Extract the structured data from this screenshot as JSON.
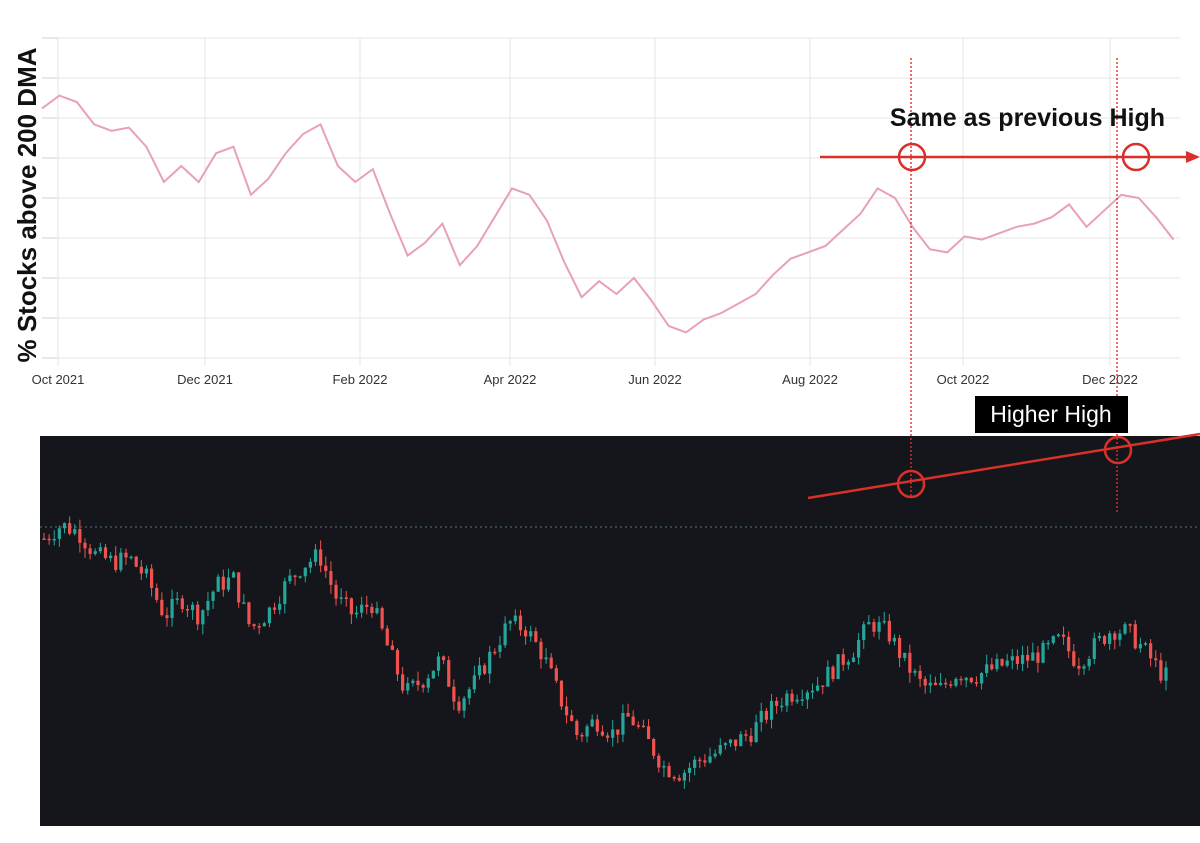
{
  "chart_data": [
    {
      "type": "line",
      "title": "",
      "ylabel": "% Stocks above 200 DMA",
      "xlabel": "",
      "x_tick_labels": [
        "Oct 2021",
        "Dec 2021",
        "Feb 2022",
        "Apr 2022",
        "Jun 2022",
        "Aug 2022",
        "Oct 2022",
        "Dec 2022"
      ],
      "x_range": [
        "2021-10-01",
        "2022-12-31"
      ],
      "grid": true,
      "line_color": "#e8a0b8",
      "series": [
        {
          "x": [
            "2021-10-01",
            "2021-10-08",
            "2021-10-15",
            "2021-10-22",
            "2021-10-29",
            "2021-11-05",
            "2021-11-12",
            "2021-11-19",
            "2021-11-26",
            "2021-12-03",
            "2021-12-10",
            "2021-12-17",
            "2021-12-24",
            "2021-12-31",
            "2022-01-07",
            "2022-01-14",
            "2022-01-21",
            "2022-01-28",
            "2022-02-04",
            "2022-02-11",
            "2022-02-18",
            "2022-02-25",
            "2022-03-04",
            "2022-03-11",
            "2022-03-18",
            "2022-03-25",
            "2022-04-01",
            "2022-04-08",
            "2022-04-15",
            "2022-04-22",
            "2022-04-29",
            "2022-05-06",
            "2022-05-13",
            "2022-05-20",
            "2022-05-27",
            "2022-06-03",
            "2022-06-10",
            "2022-06-17",
            "2022-06-24",
            "2022-07-01",
            "2022-07-08",
            "2022-07-15",
            "2022-07-22",
            "2022-07-29",
            "2022-08-05",
            "2022-08-12",
            "2022-08-19",
            "2022-08-26",
            "2022-09-02",
            "2022-09-09",
            "2022-09-16",
            "2022-09-23",
            "2022-09-30",
            "2022-10-07",
            "2022-10-14",
            "2022-10-21",
            "2022-10-28",
            "2022-11-04",
            "2022-11-11",
            "2022-11-18",
            "2022-11-25",
            "2022-12-02",
            "2022-12-09",
            "2022-12-16",
            "2022-12-23",
            "2022-12-30"
          ],
          "y": [
            0.78,
            0.82,
            0.8,
            0.73,
            0.71,
            0.72,
            0.66,
            0.55,
            0.6,
            0.55,
            0.64,
            0.66,
            0.51,
            0.56,
            0.64,
            0.7,
            0.73,
            0.6,
            0.55,
            0.59,
            0.45,
            0.32,
            0.36,
            0.42,
            0.29,
            0.35,
            0.44,
            0.53,
            0.51,
            0.43,
            0.3,
            0.19,
            0.24,
            0.2,
            0.25,
            0.18,
            0.1,
            0.08,
            0.12,
            0.14,
            0.17,
            0.2,
            0.26,
            0.31,
            0.33,
            0.35,
            0.4,
            0.45,
            0.53,
            0.5,
            0.41,
            0.34,
            0.33,
            0.38,
            0.37,
            0.39,
            0.41,
            0.42,
            0.44,
            0.48,
            0.41,
            0.46,
            0.51,
            0.5,
            0.44,
            0.37
          ]
        }
      ],
      "annotations": {
        "label": "Same as previous High",
        "arrow_color": "#d9302a"
      }
    },
    {
      "type": "candlestick",
      "title": "",
      "background": "#15161b",
      "up_color": "#26a69a",
      "down_color": "#ef5350",
      "annotations": {
        "label": "Higher High",
        "line_color": "#d9302a"
      }
    }
  ]
}
